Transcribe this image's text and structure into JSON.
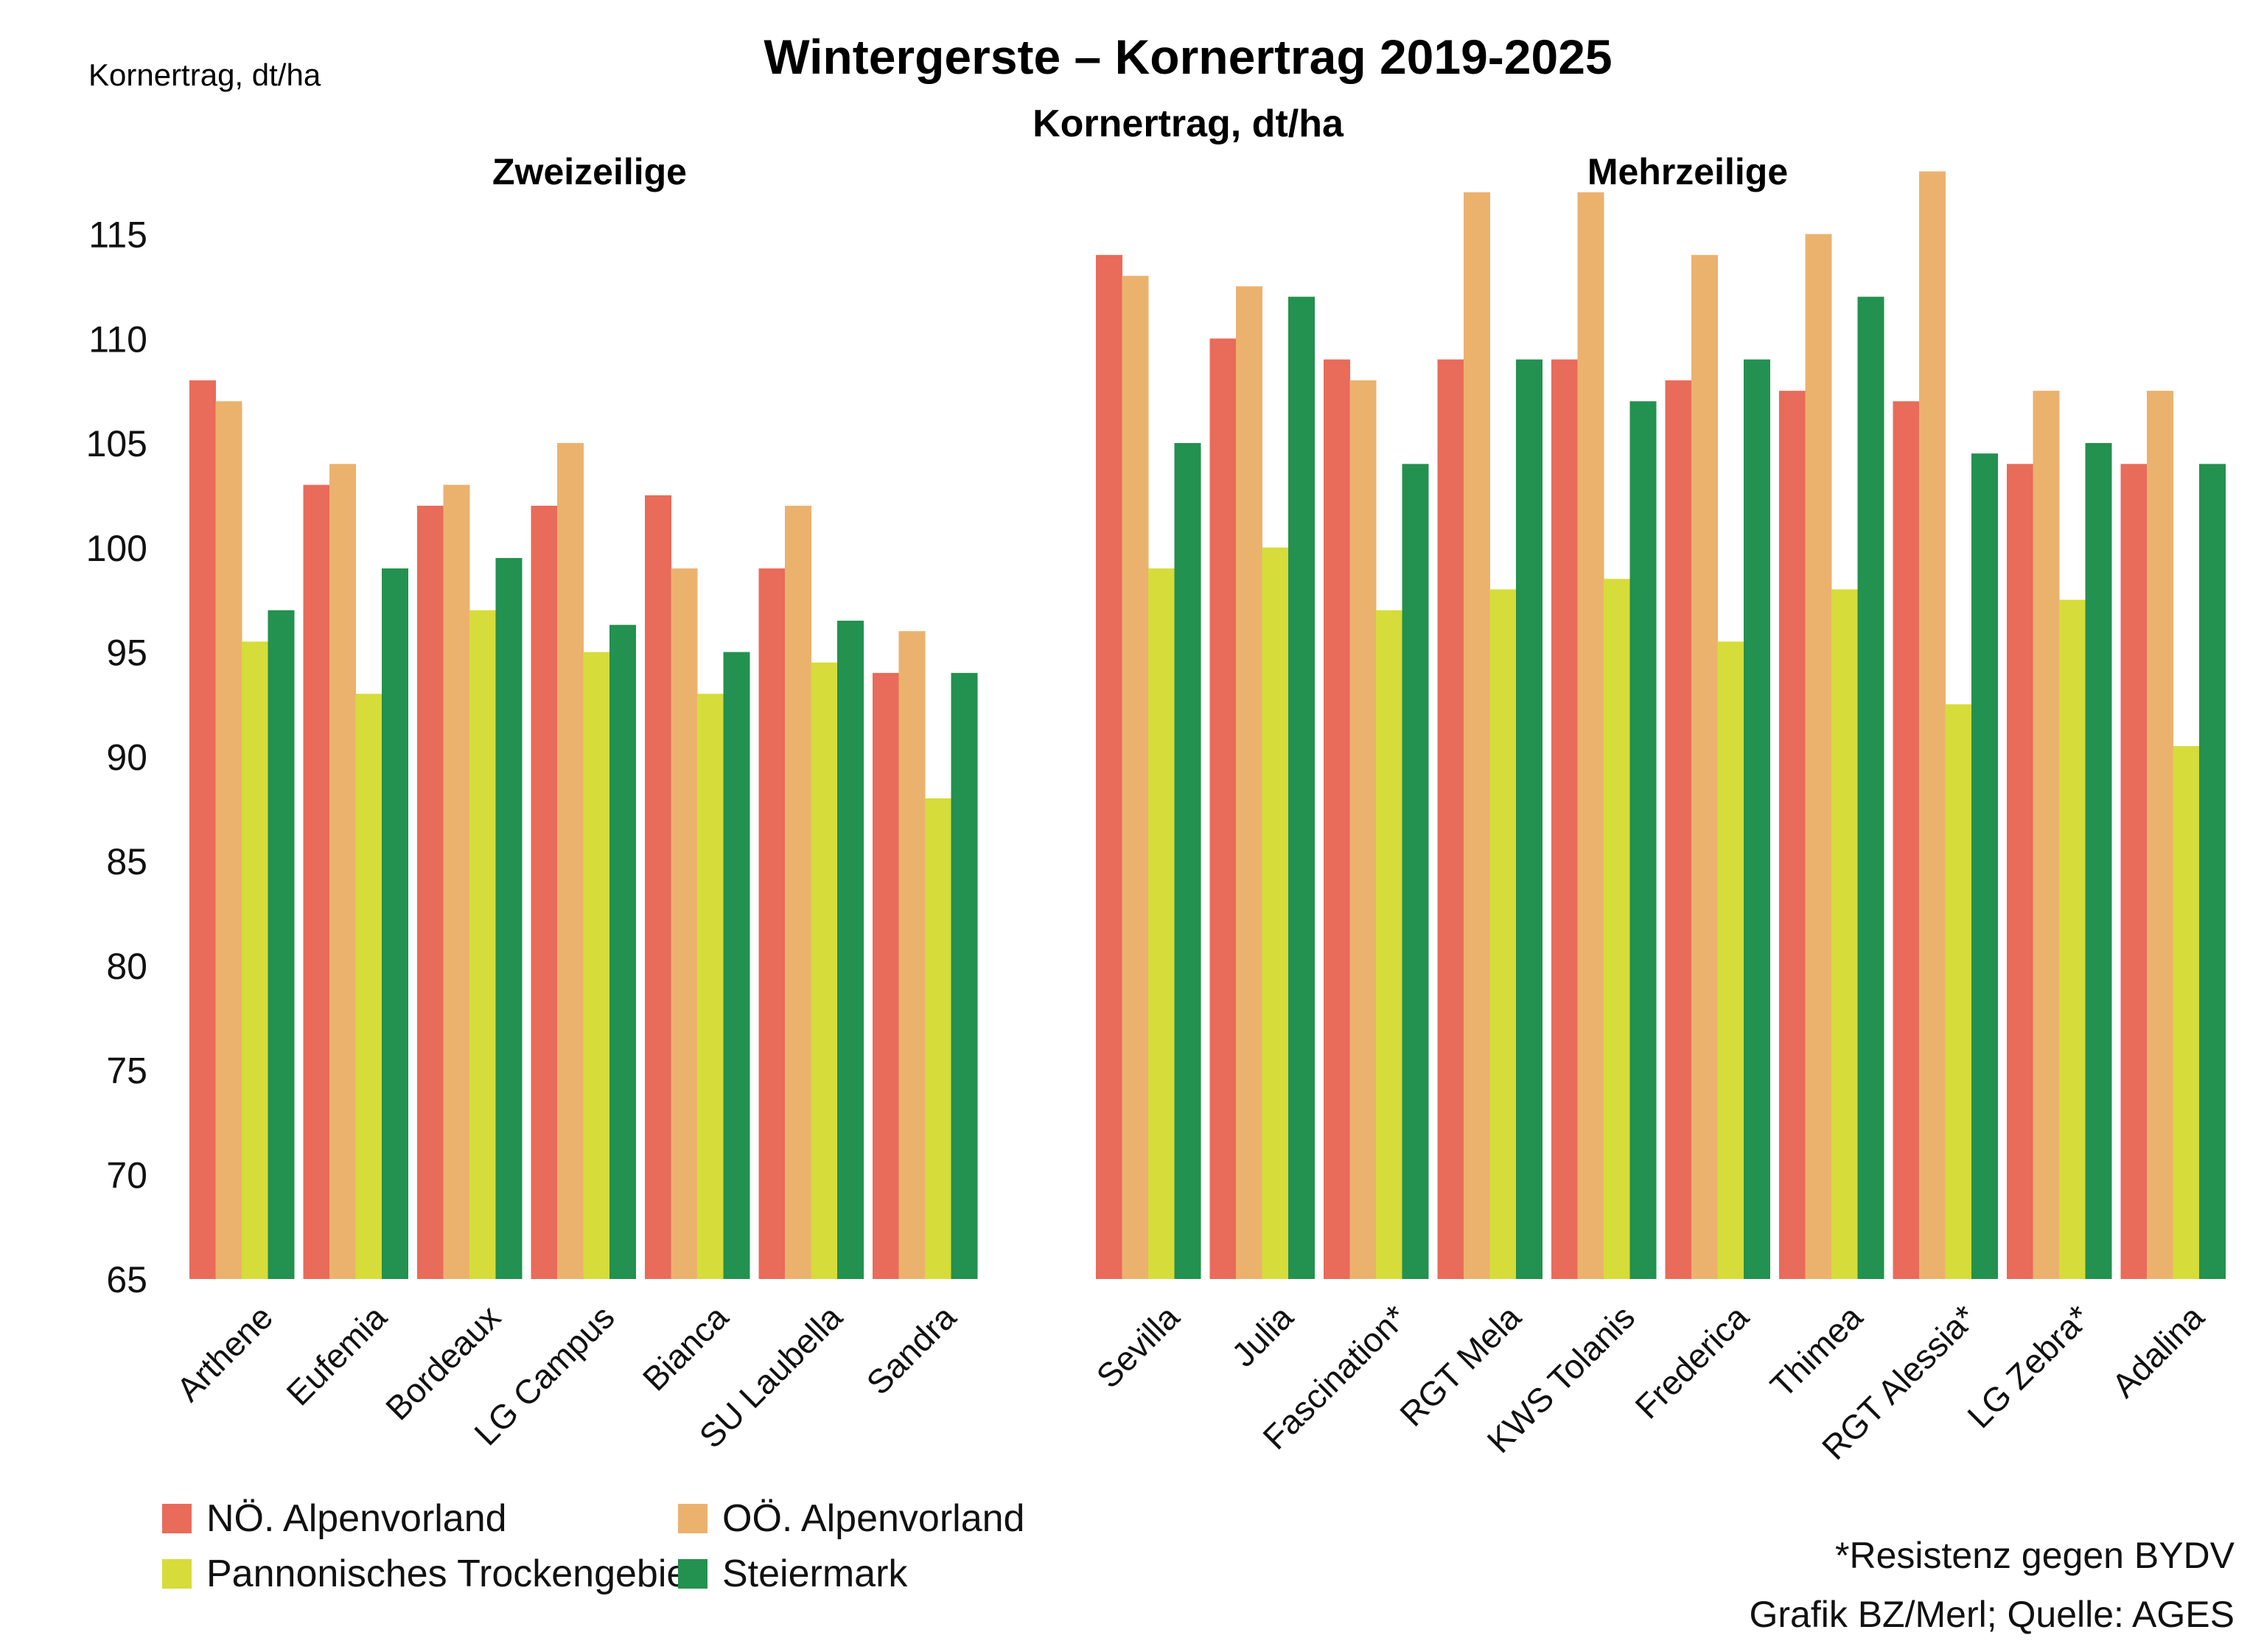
{
  "chart_data": {
    "type": "bar",
    "title": "Wintergerste – Kornertrag 2019-2025",
    "subtitle": "Kornertrag, dt/ha",
    "ylabel": "Kornertrag, dt/ha",
    "ylim": [
      65,
      118
    ],
    "yticks": [
      65,
      70,
      75,
      80,
      85,
      90,
      95,
      100,
      105,
      110,
      115
    ],
    "grid": false,
    "legend_position": "bottom-left",
    "series_names": [
      "NÖ. Alpenvorland",
      "OÖ. Alpenvorland",
      "Pannonisches Trockengebiet",
      "Steiermark"
    ],
    "colors": [
      "#e96b5a",
      "#ebb26e",
      "#d6dc3a",
      "#23914f"
    ],
    "groups": [
      {
        "name": "Zweizeilige",
        "categories": [
          "Arthene",
          "Eufemia",
          "Bordeaux",
          "LG Campus",
          "Bianca",
          "SU Laubella",
          "Sandra"
        ],
        "series": [
          {
            "name": "NÖ. Alpenvorland",
            "values": [
              108,
              103,
              102,
              102,
              102.5,
              99,
              94
            ]
          },
          {
            "name": "OÖ. Alpenvorland",
            "values": [
              107,
              104,
              103,
              105,
              99,
              102,
              96
            ]
          },
          {
            "name": "Pannonisches Trockengebiet",
            "values": [
              95.5,
              93,
              97,
              95,
              93,
              94.5,
              88
            ]
          },
          {
            "name": "Steiermark",
            "values": [
              97,
              99,
              99.5,
              96.3,
              95,
              96.5,
              94
            ]
          }
        ]
      },
      {
        "name": "Mehrzeilige",
        "categories": [
          "Sevilla",
          "Julia",
          "Fascination*",
          "RGT Mela",
          "KWS Tolanis",
          "Frederica",
          "Thimea",
          "RGT Alessia*",
          "LG Zebra*",
          "Adalina"
        ],
        "series": [
          {
            "name": "NÖ. Alpenvorland",
            "values": [
              114,
              110,
              109,
              109,
              109,
              108,
              107.5,
              107,
              104,
              104
            ]
          },
          {
            "name": "OÖ. Alpenvorland",
            "values": [
              113,
              112.5,
              108,
              117,
              117,
              114,
              115,
              118,
              107.5,
              107.5
            ]
          },
          {
            "name": "Pannonisches Trockengebiet",
            "values": [
              99,
              100,
              97,
              98,
              98.5,
              95.5,
              98,
              92.5,
              97.5,
              90.5
            ]
          },
          {
            "name": "Steiermark",
            "values": [
              105,
              112,
              104,
              109,
              107,
              109,
              112,
              104.5,
              105,
              104
            ]
          }
        ]
      }
    ]
  },
  "notes": {
    "resistance": "*Resistenz gegen BYDV",
    "source": "Grafik BZ/Merl; Quelle: AGES"
  }
}
